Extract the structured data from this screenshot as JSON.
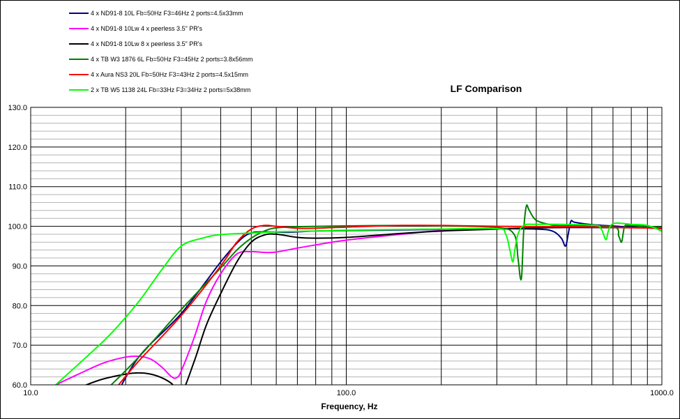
{
  "chart_data": {
    "type": "line",
    "title": "LF Comparison",
    "xlabel": "Frequency, Hz",
    "ylabel": "",
    "x_scale": "log",
    "xlim": [
      10,
      1000
    ],
    "ylim": [
      60,
      130
    ],
    "x_tick_labels": [
      "10.0",
      "100.0",
      "1000.0"
    ],
    "y_tick_labels": [
      "60.0",
      "70.0",
      "80.0",
      "90.0",
      "100.0",
      "110.0",
      "120.0",
      "130.0"
    ],
    "grid": true,
    "legend_position": "top-left",
    "series": [
      {
        "name": "4 x ND91-8 10L Fb=50Hz F3=46Hz  2 ports=4.5x33mm",
        "color": "#000080",
        "points": [
          [
            18,
            55
          ],
          [
            22,
            67
          ],
          [
            30,
            78
          ],
          [
            40,
            91
          ],
          [
            46,
            96.5
          ],
          [
            50,
            98.3
          ],
          [
            55,
            98.6
          ],
          [
            65,
            98.5
          ],
          [
            80,
            98.8
          ],
          [
            100,
            98.9
          ],
          [
            150,
            99.1
          ],
          [
            200,
            99.2
          ],
          [
            300,
            99.4
          ],
          [
            400,
            99.3
          ],
          [
            450,
            98.8
          ],
          [
            480,
            97
          ],
          [
            495,
            95
          ],
          [
            505,
            98
          ],
          [
            515,
            101.3
          ],
          [
            530,
            101
          ],
          [
            600,
            100.4
          ],
          [
            800,
            99.8
          ],
          [
            1000,
            99.4
          ]
        ]
      },
      {
        "name": "4 x ND91-8 10Lw 4 x peerless 3.5\" PR's",
        "color": "#ff00ff",
        "points": [
          [
            12,
            60
          ],
          [
            14,
            62.5
          ],
          [
            17,
            65.5
          ],
          [
            20,
            67
          ],
          [
            22,
            67.2
          ],
          [
            24,
            66.5
          ],
          [
            26,
            64.5
          ],
          [
            28,
            62
          ],
          [
            29,
            61.8
          ],
          [
            30,
            63.5
          ],
          [
            33,
            72
          ],
          [
            36,
            81
          ],
          [
            40,
            88
          ],
          [
            45,
            93
          ],
          [
            50,
            93.6
          ],
          [
            55,
            93.4
          ],
          [
            60,
            93.5
          ],
          [
            70,
            94.5
          ],
          [
            80,
            95.3
          ],
          [
            100,
            96.5
          ],
          [
            150,
            98
          ],
          [
            200,
            98.9
          ],
          [
            300,
            99.4
          ],
          [
            500,
            99.7
          ],
          [
            1000,
            99.6
          ]
        ]
      },
      {
        "name": "4 x ND91-8 10Lw 8 x peerless 3.5\" PR's",
        "color": "#000000",
        "points": [
          [
            15,
            60
          ],
          [
            17,
            61.5
          ],
          [
            20,
            62.7
          ],
          [
            22,
            63
          ],
          [
            24,
            62.7
          ],
          [
            26,
            61.8
          ],
          [
            28,
            60.3
          ],
          [
            30,
            58
          ],
          [
            33,
            66
          ],
          [
            36,
            75
          ],
          [
            40,
            83
          ],
          [
            45,
            91
          ],
          [
            50,
            96
          ],
          [
            55,
            97.8
          ],
          [
            60,
            98
          ],
          [
            70,
            97.2
          ],
          [
            80,
            97
          ],
          [
            100,
            97.2
          ],
          [
            150,
            98.2
          ],
          [
            200,
            98.8
          ],
          [
            300,
            99.3
          ],
          [
            500,
            99.7
          ],
          [
            1000,
            99.6
          ]
        ]
      },
      {
        "name": "4 x TB W3 1876 6L Fb=50Hz F3=45Hz  2 ports=3.8x56mm",
        "color": "#008000",
        "points": [
          [
            18,
            60
          ],
          [
            22,
            67
          ],
          [
            30,
            79
          ],
          [
            40,
            89.5
          ],
          [
            45,
            94
          ],
          [
            50,
            97
          ],
          [
            55,
            98.8
          ],
          [
            60,
            99.6
          ],
          [
            70,
            99.9
          ],
          [
            100,
            100.1
          ],
          [
            150,
            100.2
          ],
          [
            200,
            100.1
          ],
          [
            300,
            99.7
          ],
          [
            340,
            98
          ],
          [
            350,
            92
          ],
          [
            356,
            87
          ],
          [
            360,
            88
          ],
          [
            365,
            99
          ],
          [
            372,
            105.1
          ],
          [
            380,
            104
          ],
          [
            400,
            101.5
          ],
          [
            450,
            100.3
          ],
          [
            500,
            100.1
          ],
          [
            700,
            99.9
          ],
          [
            730,
            97.5
          ],
          [
            745,
            96
          ],
          [
            755,
            98.5
          ],
          [
            765,
            100.2
          ],
          [
            800,
            100.2
          ],
          [
            1000,
            99.7
          ]
        ]
      },
      {
        "name": "4 x Aura NS3 20L Fb=50Hz F3=43Hz  2 ports=4.5x15mm",
        "color": "#ff0000",
        "points": [
          [
            19,
            60
          ],
          [
            22,
            66
          ],
          [
            30,
            77.5
          ],
          [
            40,
            90
          ],
          [
            45,
            96
          ],
          [
            50,
            99.3
          ],
          [
            55,
            100.2
          ],
          [
            60,
            100
          ],
          [
            70,
            99.5
          ],
          [
            80,
            99.5
          ],
          [
            100,
            99.8
          ],
          [
            150,
            100.2
          ],
          [
            200,
            100.2
          ],
          [
            300,
            100
          ],
          [
            500,
            99.9
          ],
          [
            1000,
            99.5
          ]
        ]
      },
      {
        "name": "2 x TB W5 1138 24L Fb=33Hz F3=34Hz  2 ports=5x38mm",
        "color": "#00ff00",
        "points": [
          [
            12,
            60
          ],
          [
            15,
            67
          ],
          [
            18,
            73
          ],
          [
            22,
            81
          ],
          [
            26,
            89
          ],
          [
            30,
            95
          ],
          [
            35,
            97
          ],
          [
            40,
            97.9
          ],
          [
            50,
            98.3
          ],
          [
            60,
            98.6
          ],
          [
            80,
            98.8
          ],
          [
            100,
            99
          ],
          [
            150,
            99.2
          ],
          [
            200,
            99.3
          ],
          [
            300,
            99.4
          ],
          [
            320,
            98
          ],
          [
            330,
            94
          ],
          [
            337,
            91
          ],
          [
            342,
            94
          ],
          [
            350,
            98
          ],
          [
            365,
            100.2
          ],
          [
            400,
            100.5
          ],
          [
            600,
            100.3
          ],
          [
            640,
            99.5
          ],
          [
            660,
            97
          ],
          [
            668,
            96.8
          ],
          [
            675,
            98.5
          ],
          [
            690,
            100.3
          ],
          [
            720,
            100.8
          ],
          [
            800,
            100.5
          ],
          [
            900,
            100.2
          ],
          [
            1000,
            98.8
          ]
        ]
      }
    ]
  }
}
